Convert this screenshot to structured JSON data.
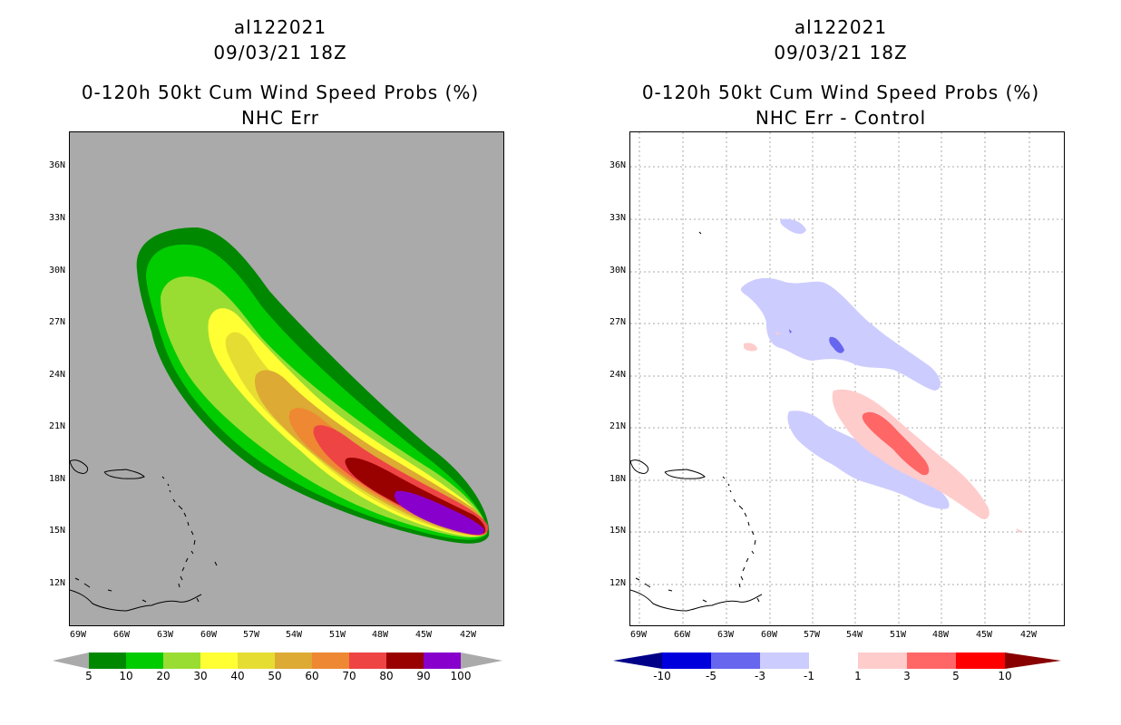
{
  "left": {
    "storm_id": "al122021",
    "datetime": "09/03/21 18Z",
    "product": "0-120h 50kt Cum Wind Speed Probs (%)",
    "subtitle": "NHC Err",
    "background": "#aaaaaa",
    "lat_labels": [
      "36N",
      "33N",
      "30N",
      "27N",
      "24N",
      "21N",
      "18N",
      "15N",
      "12N"
    ],
    "lon_labels": [
      "69W",
      "66W",
      "63W",
      "60W",
      "57W",
      "54W",
      "51W",
      "48W",
      "45W",
      "42W"
    ],
    "colorbar": {
      "colors": [
        "#008800",
        "#00cc00",
        "#99dd33",
        "#ffff33",
        "#e6dd33",
        "#ddaa33",
        "#ee8833",
        "#ee4444",
        "#990000",
        "#8800cc"
      ],
      "labels": [
        "5",
        "10",
        "20",
        "30",
        "40",
        "50",
        "60",
        "70",
        "80",
        "90",
        "100"
      ]
    }
  },
  "right": {
    "storm_id": "al122021",
    "datetime": "09/03/21 18Z",
    "product": "0-120h 50kt Cum Wind Speed Probs (%)",
    "subtitle": "NHC Err - Control",
    "background": "#ffffff",
    "lat_labels": [
      "36N",
      "33N",
      "30N",
      "27N",
      "24N",
      "21N",
      "18N",
      "15N",
      "12N"
    ],
    "lon_labels": [
      "69W",
      "66W",
      "63W",
      "60W",
      "57W",
      "54W",
      "51W",
      "48W",
      "45W",
      "42W"
    ],
    "colorbar": {
      "colors": [
        "#0000dd",
        "#6666ee",
        "#ccccff",
        "#ffffff",
        "#ffcccc",
        "#ff6666",
        "#ff0000"
      ],
      "end_low": "#000088",
      "end_high": "#880000",
      "labels": [
        "-10",
        "-5",
        "-3",
        "-1",
        "1",
        "3",
        "5",
        "10"
      ]
    }
  }
}
